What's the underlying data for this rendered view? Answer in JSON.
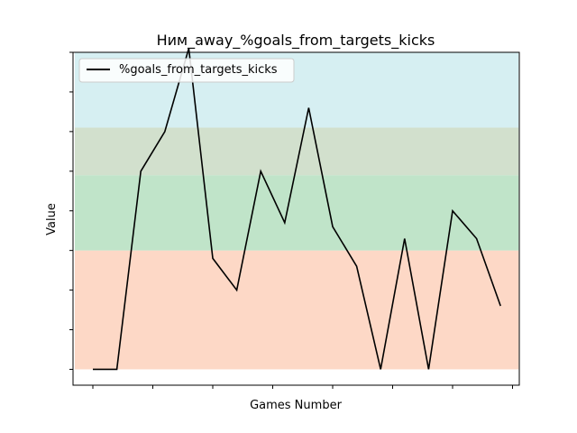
{
  "chart_data": {
    "type": "line",
    "title": "Ним_away_%goals_from_targets_kicks",
    "xlabel": "Games Number",
    "ylabel": "Value",
    "legend_position": "top-left",
    "grid": false,
    "x": [
      1,
      2,
      3,
      4,
      5,
      6,
      7,
      8,
      9,
      10,
      11,
      12,
      13,
      14,
      15,
      16,
      17,
      18
    ],
    "ylim": [
      -0.4,
      8.0
    ],
    "series": [
      {
        "name": "%goals_from_targets_kicks",
        "color": "#000000",
        "values": [
          0.0,
          0.0,
          5.0,
          6.0,
          8.1,
          2.8,
          2.0,
          5.0,
          3.7,
          6.6,
          3.6,
          2.6,
          0.0,
          3.3,
          0.0,
          4.0,
          3.3,
          1.6
        ]
      }
    ],
    "bands": [
      {
        "from": 0.0,
        "to": 3.0,
        "color": "#fdd8c6"
      },
      {
        "from": 3.0,
        "to": 4.9,
        "color": "#c0e4c9"
      },
      {
        "from": 4.9,
        "to": 6.1,
        "color": "#d2e0cd"
      },
      {
        "from": 6.1,
        "to": 8.0,
        "color": "#d6eff2"
      }
    ]
  }
}
